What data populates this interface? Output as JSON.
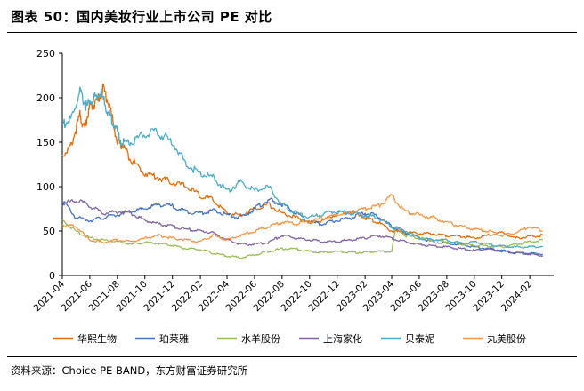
{
  "header": {
    "title": "图表 50：国内美妆行业上市公司 PE 对比"
  },
  "footer": {
    "source": "资料来源：Choice PE BAND，东方财富证券研究所"
  },
  "chart_data": {
    "type": "line",
    "title": "图表 50：国内美妆行业上市公司 PE 对比",
    "xlabel": "",
    "ylabel": "",
    "ylim": [
      0,
      250
    ],
    "y_ticks": [
      0,
      50,
      100,
      150,
      200,
      250
    ],
    "x_ticks": [
      "2021-04",
      "2021-06",
      "2021-08",
      "2021-10",
      "2021-12",
      "2022-02",
      "2022-04",
      "2022-06",
      "2022-08",
      "2022-10",
      "2022-12",
      "2023-02",
      "2023-04",
      "2023-06",
      "2023-08",
      "2023-10",
      "2023-12",
      "2024-02"
    ],
    "grid": false,
    "legend_position": "bottom",
    "series": [
      {
        "name": "华熙生物",
        "color": "#E46C0A",
        "x": [
          "2021-04-01",
          "2021-04-20",
          "2021-05-10",
          "2021-05-20",
          "2021-06-01",
          "2021-06-15",
          "2021-07-01",
          "2021-07-15",
          "2021-08-01",
          "2021-08-15",
          "2021-09-01",
          "2021-10-01",
          "2021-11-01",
          "2021-12-01",
          "2022-01-01",
          "2022-02-01",
          "2022-03-01",
          "2022-04-01",
          "2022-05-01",
          "2022-06-01",
          "2022-07-01",
          "2022-08-01",
          "2022-09-01",
          "2022-10-01",
          "2022-11-01",
          "2022-12-01",
          "2023-01-01",
          "2023-02-01",
          "2023-03-01",
          "2023-04-01",
          "2023-05-01",
          "2023-06-01",
          "2023-07-01",
          "2023-08-01",
          "2023-09-01",
          "2023-10-01",
          "2023-11-01",
          "2023-12-01",
          "2024-01-01",
          "2024-02-01",
          "2024-03-01"
        ],
        "values": [
          135,
          145,
          180,
          165,
          190,
          195,
          210,
          190,
          150,
          145,
          130,
          115,
          110,
          105,
          100,
          90,
          85,
          70,
          68,
          75,
          80,
          70,
          65,
          60,
          62,
          70,
          72,
          65,
          60,
          50,
          48,
          47,
          47,
          45,
          44,
          42,
          45,
          48,
          42,
          44,
          45
        ]
      },
      {
        "name": "珀莱雅",
        "color": "#4472C4",
        "x": [
          "2021-04-01",
          "2021-05-01",
          "2021-06-01",
          "2021-07-01",
          "2021-08-01",
          "2021-09-01",
          "2021-10-01",
          "2021-11-01",
          "2021-12-01",
          "2022-01-01",
          "2022-02-01",
          "2022-03-01",
          "2022-04-01",
          "2022-05-01",
          "2022-06-01",
          "2022-07-01",
          "2022-08-01",
          "2022-09-01",
          "2022-10-01",
          "2022-11-01",
          "2022-12-01",
          "2023-01-01",
          "2023-02-01",
          "2023-03-01",
          "2023-04-01",
          "2023-05-01",
          "2023-06-01",
          "2023-07-01",
          "2023-08-01",
          "2023-09-01",
          "2023-10-01",
          "2023-11-01",
          "2023-12-01",
          "2024-01-01",
          "2024-02-01",
          "2024-03-01"
        ],
        "values": [
          85,
          65,
          62,
          65,
          68,
          72,
          75,
          80,
          78,
          72,
          70,
          73,
          68,
          65,
          75,
          85,
          80,
          70,
          60,
          58,
          62,
          65,
          70,
          67,
          55,
          48,
          42,
          38,
          36,
          35,
          32,
          30,
          28,
          25,
          25,
          24
        ]
      },
      {
        "name": "水羊股份",
        "color": "#9BBB59",
        "x": [
          "2021-04-01",
          "2021-05-01",
          "2021-06-01",
          "2021-07-01",
          "2021-08-01",
          "2021-09-01",
          "2021-10-01",
          "2021-11-01",
          "2021-12-01",
          "2022-01-01",
          "2022-02-01",
          "2022-03-01",
          "2022-04-01",
          "2022-05-01",
          "2022-06-01",
          "2022-07-01",
          "2022-08-01",
          "2022-09-01",
          "2022-10-01",
          "2022-11-01",
          "2022-12-01",
          "2023-01-01",
          "2023-02-01",
          "2023-03-01",
          "2023-04-01",
          "2023-04-10",
          "2023-05-01",
          "2023-06-01",
          "2023-07-01",
          "2023-08-01",
          "2023-09-01",
          "2023-10-01",
          "2023-11-01",
          "2023-12-01",
          "2024-01-01",
          "2024-02-01",
          "2024-03-01"
        ],
        "values": [
          62,
          50,
          42,
          40,
          38,
          35,
          37,
          36,
          34,
          30,
          29,
          25,
          22,
          20,
          23,
          27,
          30,
          30,
          27,
          26,
          27,
          26,
          26,
          27,
          27,
          55,
          45,
          42,
          40,
          38,
          35,
          34,
          33,
          32,
          35,
          38,
          40
        ]
      },
      {
        "name": "上海家化",
        "color": "#8064A2",
        "x": [
          "2021-04-01",
          "2021-05-01",
          "2021-06-01",
          "2021-07-01",
          "2021-08-01",
          "2021-09-01",
          "2021-10-01",
          "2021-11-01",
          "2021-12-01",
          "2022-01-01",
          "2022-02-01",
          "2022-03-01",
          "2022-04-01",
          "2022-05-01",
          "2022-06-01",
          "2022-07-01",
          "2022-08-01",
          "2022-09-01",
          "2022-10-01",
          "2022-11-01",
          "2022-12-01",
          "2023-01-01",
          "2023-02-01",
          "2023-03-01",
          "2023-04-01",
          "2023-05-01",
          "2023-06-01",
          "2023-07-01",
          "2023-08-01",
          "2023-09-01",
          "2023-10-01",
          "2023-11-01",
          "2023-12-01",
          "2024-01-01",
          "2024-02-01",
          "2024-03-01"
        ],
        "values": [
          80,
          85,
          78,
          70,
          72,
          70,
          62,
          58,
          55,
          52,
          50,
          48,
          40,
          35,
          35,
          37,
          45,
          42,
          40,
          38,
          38,
          40,
          42,
          45,
          42,
          38,
          35,
          33,
          32,
          30,
          28,
          30,
          27,
          26,
          24,
          22
        ]
      },
      {
        "name": "贝泰妮",
        "color": "#4BACC6",
        "x": [
          "2021-04-01",
          "2021-04-20",
          "2021-05-10",
          "2021-05-25",
          "2021-06-10",
          "2021-06-25",
          "2021-07-10",
          "2021-07-25",
          "2021-08-10",
          "2021-09-01",
          "2021-10-01",
          "2021-11-01",
          "2021-12-01",
          "2022-01-01",
          "2022-02-01",
          "2022-03-01",
          "2022-04-01",
          "2022-05-01",
          "2022-06-01",
          "2022-07-01",
          "2022-08-01",
          "2022-09-01",
          "2022-10-01",
          "2022-11-01",
          "2022-12-01",
          "2023-01-01",
          "2023-02-01",
          "2023-03-01",
          "2023-04-01",
          "2023-05-01",
          "2023-06-01",
          "2023-07-01",
          "2023-08-01",
          "2023-09-01",
          "2023-10-01",
          "2023-11-01",
          "2023-12-01",
          "2024-01-01",
          "2024-02-01",
          "2024-03-01"
        ],
        "values": [
          170,
          175,
          205,
          190,
          200,
          205,
          185,
          170,
          150,
          150,
          160,
          160,
          150,
          125,
          115,
          110,
          95,
          105,
          95,
          100,
          80,
          70,
          65,
          70,
          72,
          70,
          68,
          65,
          55,
          50,
          42,
          40,
          40,
          36,
          38,
          35,
          33,
          32,
          32,
          33
        ]
      },
      {
        "name": "丸美股份",
        "color": "#F79646",
        "x": [
          "2021-04-01",
          "2021-05-01",
          "2021-06-01",
          "2021-07-01",
          "2021-08-01",
          "2021-09-01",
          "2021-10-01",
          "2021-11-01",
          "2021-12-01",
          "2022-01-01",
          "2022-02-01",
          "2022-03-01",
          "2022-04-01",
          "2022-05-01",
          "2022-06-01",
          "2022-07-01",
          "2022-08-01",
          "2022-09-01",
          "2022-10-01",
          "2022-11-01",
          "2022-12-01",
          "2023-01-01",
          "2023-02-01",
          "2023-03-01",
          "2023-04-01",
          "2023-05-01",
          "2023-06-01",
          "2023-07-01",
          "2023-08-01",
          "2023-09-01",
          "2023-10-01",
          "2023-11-01",
          "2023-12-01",
          "2024-01-01",
          "2024-02-01",
          "2024-03-01"
        ],
        "values": [
          57,
          55,
          40,
          37,
          40,
          38,
          42,
          45,
          42,
          40,
          38,
          45,
          40,
          45,
          50,
          55,
          60,
          58,
          60,
          65,
          68,
          72,
          75,
          78,
          90,
          72,
          68,
          65,
          60,
          55,
          52,
          50,
          45,
          48,
          55,
          50
        ]
      }
    ]
  }
}
